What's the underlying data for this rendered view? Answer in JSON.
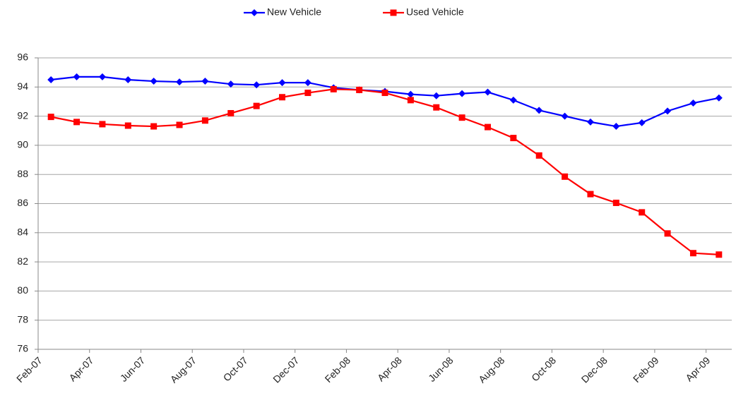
{
  "chart_data": {
    "type": "line",
    "categories": [
      "Feb-07",
      null,
      "Apr-07",
      null,
      "Jun-07",
      null,
      "Aug-07",
      null,
      "Oct-07",
      null,
      "Dec-07",
      null,
      "Feb-08",
      null,
      "Apr-08",
      null,
      "Jun-08",
      null,
      "Aug-08",
      null,
      "Oct-08",
      null,
      "Dec-08",
      null,
      "Feb-09",
      null,
      "Apr-09"
    ],
    "series": [
      {
        "name": "New Vehicle",
        "color": "#0000ff",
        "marker": "diamond",
        "values": [
          94.5,
          94.7,
          94.7,
          94.5,
          94.4,
          94.35,
          94.4,
          94.2,
          94.15,
          94.3,
          94.3,
          93.95,
          93.8,
          93.7,
          93.5,
          93.4,
          93.55,
          93.65,
          93.1,
          92.4,
          92.0,
          91.6,
          91.3,
          91.55,
          92.35,
          92.9,
          93.25
        ]
      },
      {
        "name": "Used Vehicle",
        "color": "#ff0000",
        "marker": "square",
        "values": [
          91.95,
          91.6,
          91.45,
          91.35,
          91.3,
          91.4,
          91.7,
          92.2,
          92.7,
          93.3,
          93.6,
          93.85,
          93.8,
          93.6,
          93.1,
          92.6,
          91.9,
          91.25,
          90.5,
          89.3,
          87.85,
          86.65,
          86.05,
          85.4,
          83.95,
          82.6,
          82.5
        ]
      }
    ],
    "ylim": [
      76,
      96
    ],
    "yticks": [
      76,
      78,
      80,
      82,
      84,
      86,
      88,
      90,
      92,
      94,
      96
    ],
    "grid": true,
    "legend": "top"
  }
}
